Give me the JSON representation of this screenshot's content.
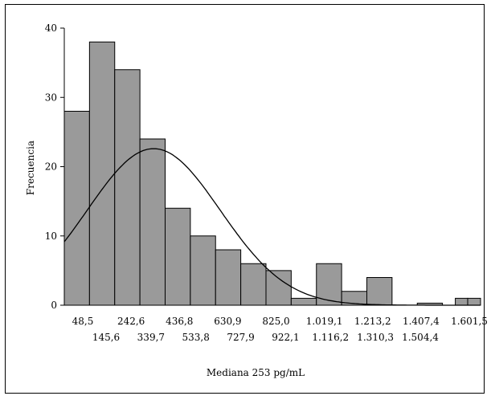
{
  "chart_data": {
    "type": "bar",
    "subtype": "histogram-with-normal-curve",
    "xlabel": "Mediana 253 pg/mL",
    "ylabel": "Frecuencia",
    "ylim": [
      0,
      40
    ],
    "yticks": [
      "0",
      "10",
      "20",
      "30",
      "40"
    ],
    "xticks_upper": [
      "48,5",
      "242,6",
      "436,8",
      "630,9",
      "825,0",
      "1.019,1",
      "1.213,2",
      "1.407,4",
      "1.601,5"
    ],
    "xticks_lower": [
      "145,6",
      "339,7",
      "533,8",
      "727,9",
      "922,1",
      "1.116,2",
      "1.310,3",
      "1.504,4"
    ],
    "xrange": [
      0,
      1601.5
    ],
    "bins": [
      {
        "x0": 0,
        "x1": 97,
        "count": 28
      },
      {
        "x0": 97,
        "x1": 194,
        "count": 38
      },
      {
        "x0": 194,
        "x1": 291,
        "count": 34
      },
      {
        "x0": 291,
        "x1": 388,
        "count": 24
      },
      {
        "x0": 388,
        "x1": 485,
        "count": 14
      },
      {
        "x0": 485,
        "x1": 582,
        "count": 10
      },
      {
        "x0": 582,
        "x1": 679,
        "count": 8
      },
      {
        "x0": 679,
        "x1": 776,
        "count": 6
      },
      {
        "x0": 776,
        "x1": 873,
        "count": 5
      },
      {
        "x0": 873,
        "x1": 970,
        "count": 1
      },
      {
        "x0": 970,
        "x1": 1067,
        "count": 6
      },
      {
        "x0": 1067,
        "x1": 1164,
        "count": 2
      },
      {
        "x0": 1164,
        "x1": 1261,
        "count": 4
      },
      {
        "x0": 1358,
        "x1": 1455,
        "count": 0.3
      },
      {
        "x0": 1504.4,
        "x1": 1552,
        "count": 1
      },
      {
        "x0": 1552,
        "x1": 1601.5,
        "count": 1
      }
    ],
    "normal_curve": {
      "mean": 344,
      "peak": 22.6,
      "sd": 256
    },
    "bar_color": "#9a9a9a",
    "grid": false
  }
}
